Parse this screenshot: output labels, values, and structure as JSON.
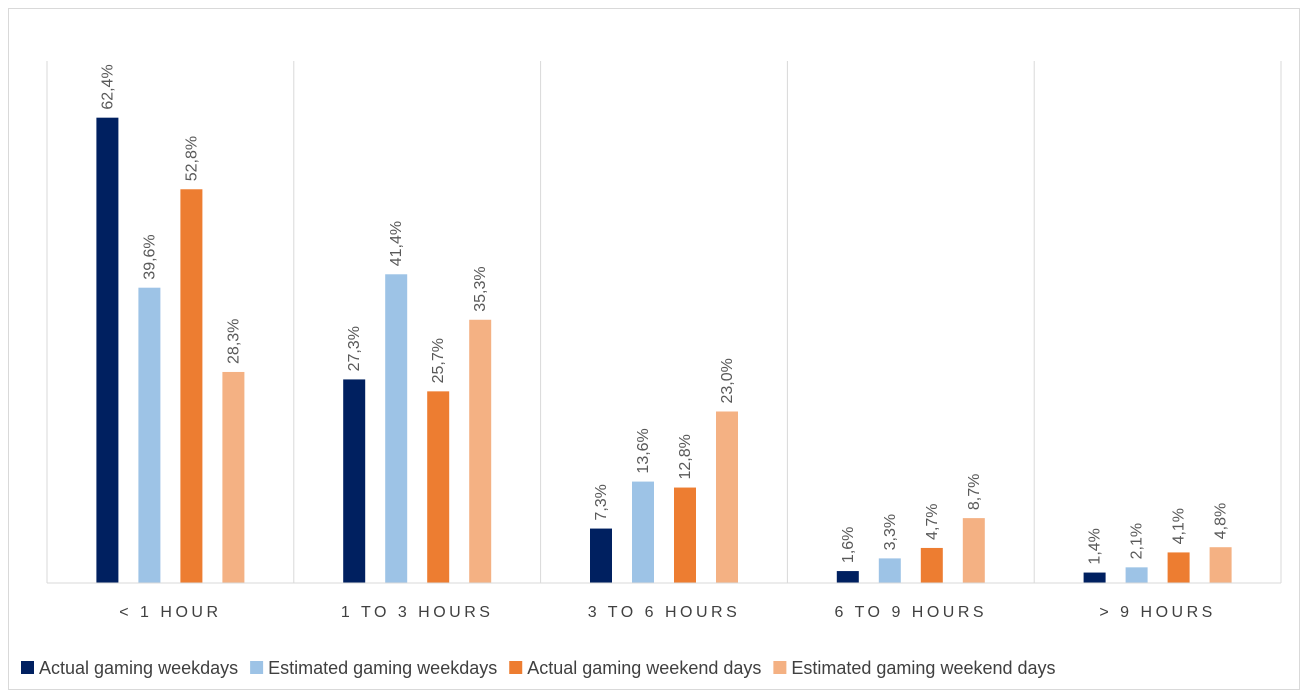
{
  "chart_data": {
    "type": "bar",
    "categories": [
      "< 1 HOUR",
      "1 TO 3 HOURS",
      "3 TO 6 HOURS",
      "6 TO 9 HOURS",
      "> 9 HOURS"
    ],
    "series": [
      {
        "name": "Actual gaming weekdays",
        "color": "#002060",
        "values": [
          62.4,
          27.3,
          7.3,
          1.6,
          1.4
        ],
        "labels": [
          "62,4%",
          "27,3%",
          "7,3%",
          "1,6%",
          "1,4%"
        ]
      },
      {
        "name": "Estimated gaming weekdays",
        "color": "#9DC3E6",
        "values": [
          39.6,
          41.4,
          13.6,
          3.3,
          2.1
        ],
        "labels": [
          "39,6%",
          "41,4%",
          "13,6%",
          "3,3%",
          "2,1%"
        ]
      },
      {
        "name": "Actual gaming weekend days",
        "color": "#ED7D31",
        "values": [
          52.8,
          25.7,
          12.8,
          4.7,
          4.1
        ],
        "labels": [
          "52,8%",
          "25,7%",
          "12,8%",
          "4,7%",
          "4,1%"
        ]
      },
      {
        "name": "Estimated gaming weekend days",
        "color": "#F4B183",
        "values": [
          28.3,
          35.3,
          23.0,
          8.7,
          4.8
        ],
        "labels": [
          "28,3%",
          "35,3%",
          "23,0%",
          "8,7%",
          "4,8%"
        ]
      }
    ],
    "ylim": [
      0,
      70
    ],
    "y_axis_visible": false,
    "grid": "vertical category separators",
    "legend_position": "bottom"
  }
}
